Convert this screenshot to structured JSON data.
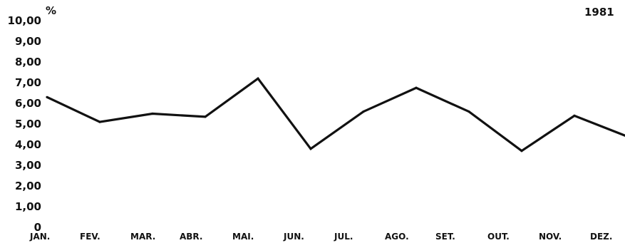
{
  "chart_data": {
    "type": "line",
    "title": "1981",
    "ylabel": "%",
    "xlabel": "",
    "categories": [
      "JAN.",
      "FEV.",
      "MAR.",
      "ABR.",
      "MAI.",
      "JUN.",
      "JUL.",
      "AGO.",
      "SET.",
      "OUT.",
      "NOV.",
      "DEZ."
    ],
    "series": [
      {
        "values": [
          6.3,
          5.1,
          5.5,
          5.35,
          7.2,
          3.8,
          5.6,
          6.75,
          5.6,
          3.7,
          5.4,
          4.4
        ]
      }
    ],
    "y_tick_labels": [
      "0",
      "1,00",
      "2,00",
      "3,00",
      "4,00",
      "5,00",
      "6,00",
      "7,00",
      "8,00",
      "9,00",
      "10,00"
    ],
    "ylim": [
      0,
      10
    ],
    "grid": false,
    "legend": "none",
    "line_color": "#111111"
  }
}
